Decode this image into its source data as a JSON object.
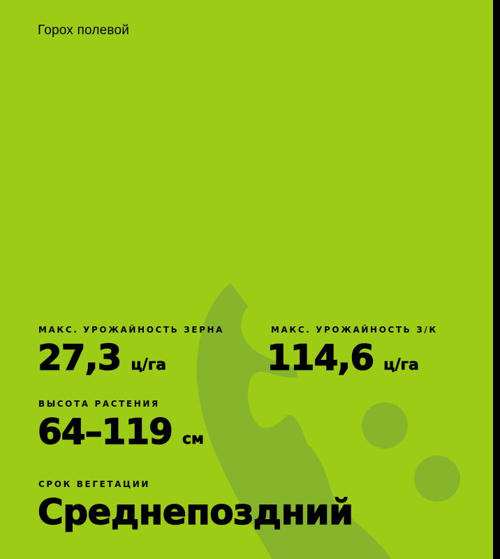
{
  "title": "Горох полевой",
  "colors": {
    "background": "#9dcc17",
    "decor": "#86b42a",
    "text": "#000000"
  },
  "stats": [
    {
      "label": "МАКС. УРОЖАЙНОСТЬ ЗЕРНА",
      "value": "27,3",
      "unit": "ц/га"
    },
    {
      "label": "МАКС. УРОЖАЙНОСТЬ З/К",
      "value": "114,6",
      "unit": "ц/га"
    },
    {
      "label": "ВЫСОТА РАСТЕНИЯ",
      "value": "64–119",
      "unit": "см"
    }
  ],
  "vegetation": {
    "label": "СРОК ВЕГЕТАЦИИ",
    "value": "Среднепоздний"
  }
}
